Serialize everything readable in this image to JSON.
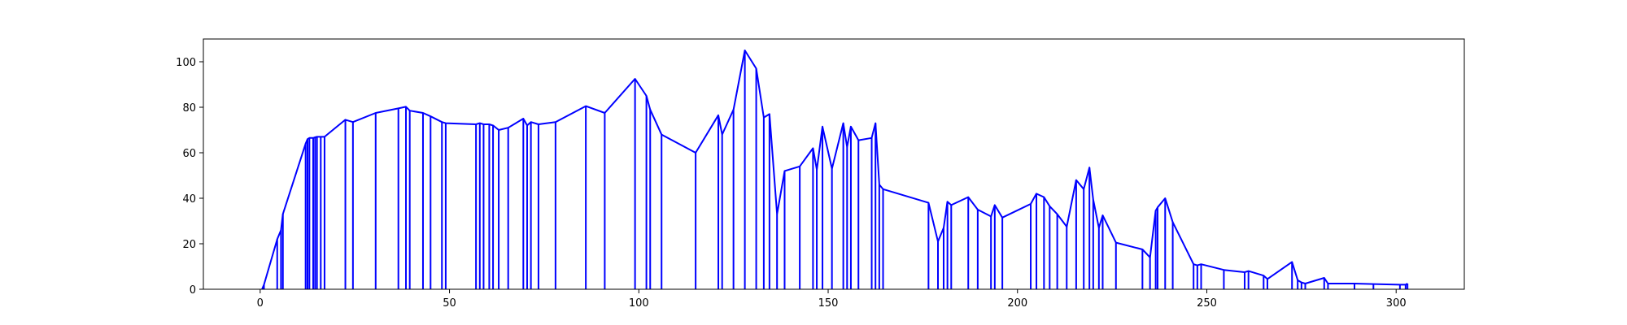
{
  "chart_data": {
    "type": "line",
    "title": "",
    "xlabel": "",
    "ylabel": "",
    "xlim": [
      -15,
      318
    ],
    "ylim": [
      0,
      110
    ],
    "x_ticks": [
      0,
      50,
      100,
      150,
      200,
      250,
      300
    ],
    "y_ticks": [
      0,
      20,
      40,
      60,
      80,
      100
    ],
    "grid": false,
    "legend": "none",
    "color": "#0000ff",
    "series": [
      {
        "x": [
          0.5,
          1,
          4.5,
          5.5,
          6,
          12,
          12.5,
          13,
          14,
          14.5,
          15,
          16,
          17,
          22.5,
          24.5,
          30.5,
          36.5,
          38.5,
          39.5,
          43,
          45,
          48,
          49,
          57,
          58,
          59,
          60.5,
          61.5,
          63,
          65.5,
          69.5,
          70.5,
          71.5,
          73.5,
          78,
          86,
          91,
          99,
          102,
          103,
          106,
          115,
          121,
          122,
          125,
          128,
          131,
          133,
          134.5,
          136.5,
          138.5,
          142.5,
          146,
          147,
          148.5,
          151,
          154,
          155,
          156,
          158,
          161.5,
          162.5,
          163.5,
          164.5,
          176.5,
          179,
          180.5,
          181.5,
          182.5,
          187,
          189.5,
          193,
          194,
          196,
          203.5,
          205,
          207,
          208.5,
          210.5,
          213,
          215.5,
          217.5,
          219,
          220,
          221.5,
          222.5,
          226,
          233,
          235,
          236.5,
          237,
          239,
          241,
          246.5,
          247.5,
          248.5,
          254.5,
          260,
          261,
          265,
          266,
          272.5,
          274,
          275,
          276,
          281,
          282,
          289,
          294,
          301,
          302.5,
          303
        ],
        "y": [
          0,
          2,
          22,
          26,
          33,
          64,
          66,
          66.5,
          66.5,
          66.8,
          67,
          67,
          67,
          74.5,
          73.5,
          77.5,
          79.5,
          80.2,
          78.5,
          77.5,
          76,
          73.5,
          73,
          72.5,
          73,
          72.5,
          72.5,
          72,
          70,
          71,
          75,
          72,
          73.5,
          72.5,
          73.5,
          80.5,
          77.5,
          92.5,
          85,
          79,
          68,
          60,
          76.5,
          68,
          79,
          105,
          97,
          75.5,
          77,
          33,
          52,
          54,
          62,
          52.5,
          71.5,
          53,
          73,
          62.5,
          71.5,
          65.5,
          66.5,
          73,
          46,
          44,
          38,
          21,
          27,
          38.5,
          37,
          40.5,
          35,
          32,
          37,
          31.5,
          37.5,
          42,
          40.5,
          36.5,
          33,
          27.5,
          48,
          44,
          53.5,
          39.5,
          27,
          32.5,
          20.5,
          17.5,
          14,
          34.5,
          36,
          40,
          29.5,
          11,
          10.5,
          11,
          8.5,
          7.5,
          8,
          6,
          4.5,
          12,
          4,
          3,
          2.5,
          5,
          2.5,
          2.5,
          2.3,
          2,
          2,
          2.5
        ]
      }
    ]
  }
}
